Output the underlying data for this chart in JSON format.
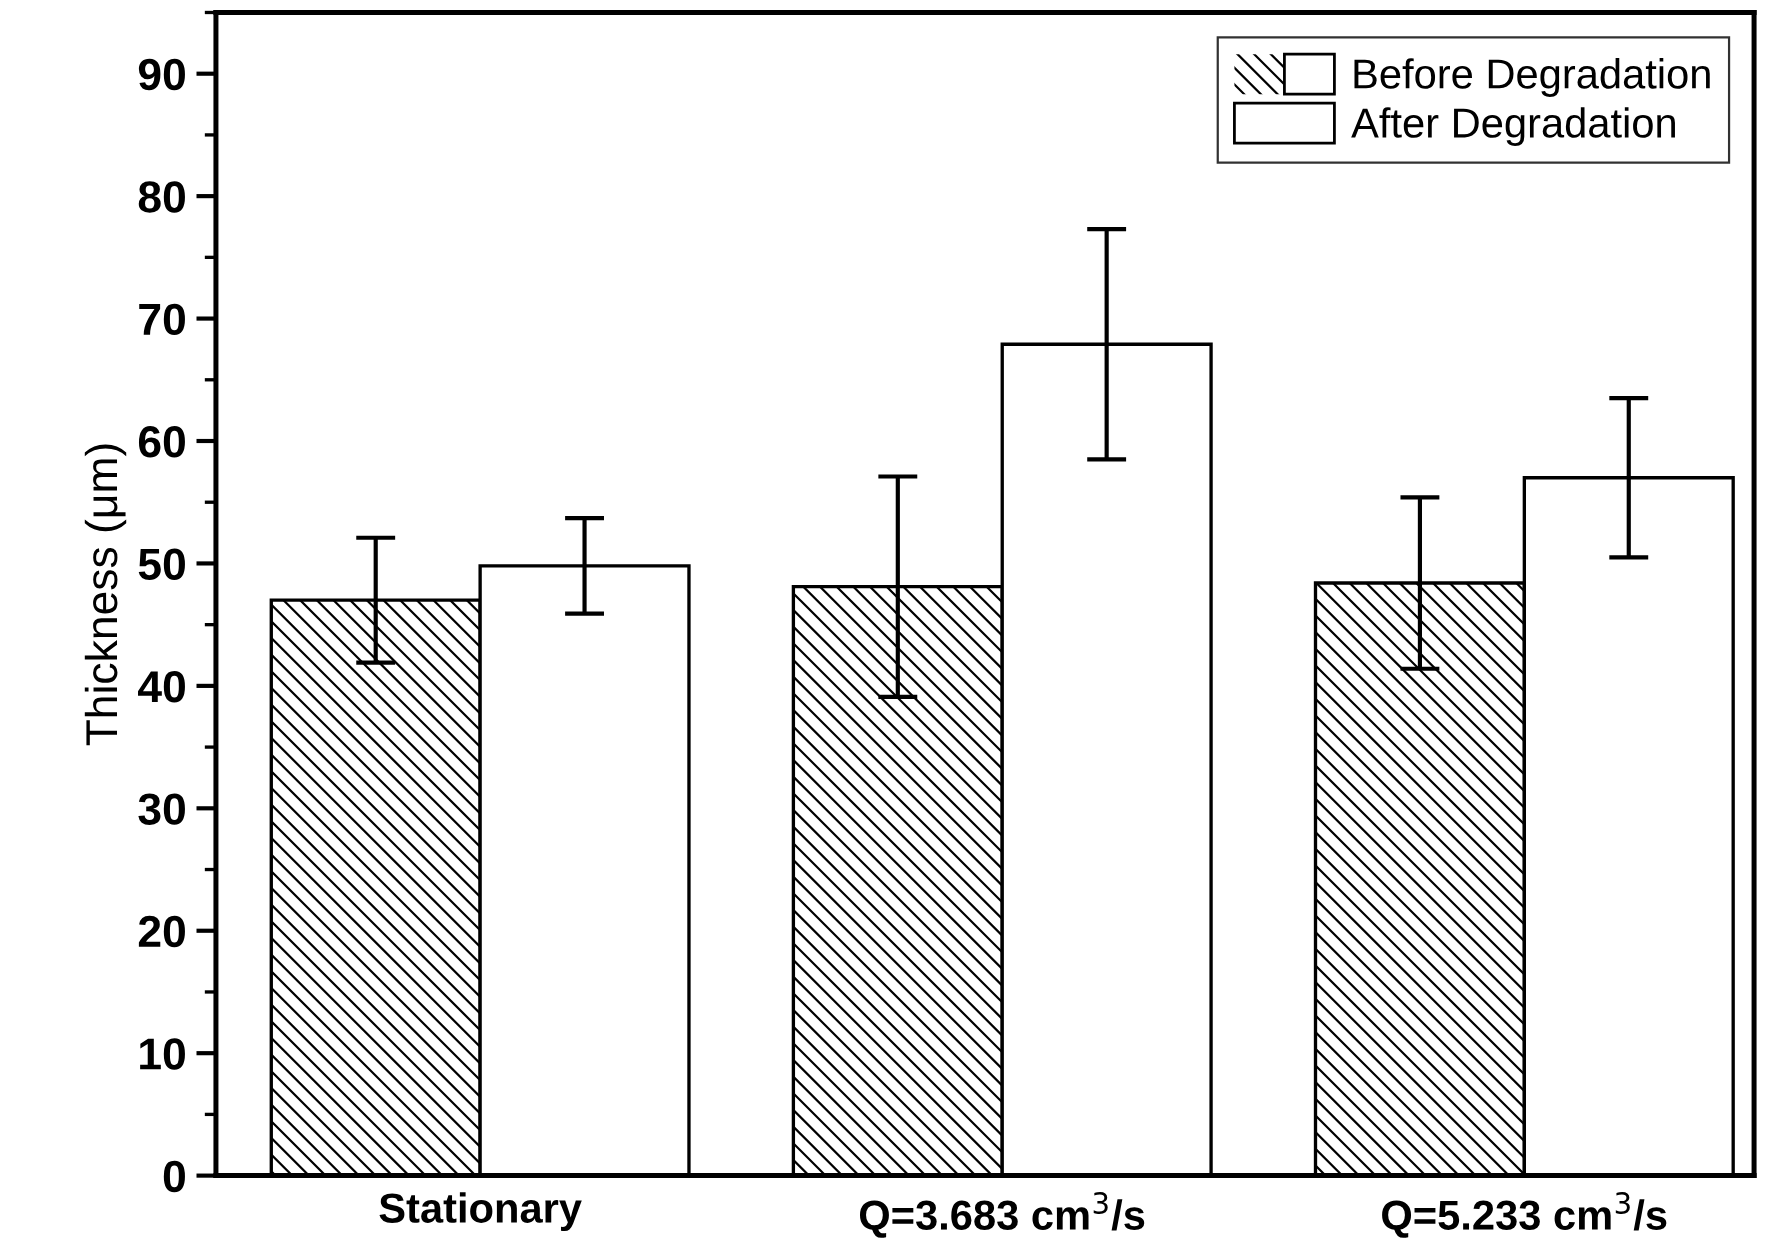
{
  "chart_data": {
    "type": "bar",
    "ylabel": "Thickness (μm)",
    "categories": [
      "Stationary",
      "Q=3.683 cm$^{3}$/s",
      "Q=5.233 cm$^{3}$/s"
    ],
    "series": [
      {
        "name": "Before Degradation",
        "color": "#000000",
        "values": [
          47.0,
          48.1,
          48.4
        ],
        "errors": [
          5.1,
          9.0,
          7.0
        ]
      },
      {
        "name": "After Degradation",
        "color": "#ffffff",
        "values": [
          49.8,
          67.9,
          57.0
        ],
        "errors": [
          3.9,
          9.4,
          6.5
        ]
      }
    ],
    "ylim": [
      0,
      95
    ],
    "yticks": [
      0,
      10,
      20,
      30,
      40,
      50,
      60,
      70,
      80,
      90
    ],
    "grid": false,
    "legend": "top right"
  }
}
